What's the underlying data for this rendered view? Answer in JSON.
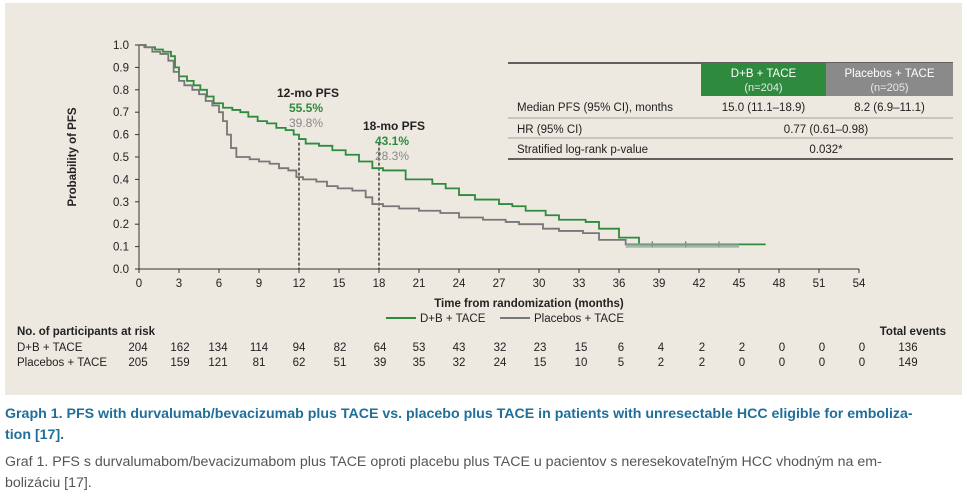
{
  "chart_data": {
    "type": "line",
    "xlabel": "Time from randomization (months)",
    "ylabel": "Probability of PFS",
    "xlim": [
      0,
      54
    ],
    "ylim": [
      0,
      1.0
    ],
    "x_ticks": [
      "0",
      "3",
      "6",
      "9",
      "12",
      "15",
      "18",
      "21",
      "24",
      "27",
      "30",
      "33",
      "36",
      "39",
      "42",
      "45",
      "48",
      "51",
      "54"
    ],
    "y_ticks": [
      "0.0",
      "0.1",
      "0.2",
      "0.3",
      "0.4",
      "0.5",
      "0.6",
      "0.7",
      "0.8",
      "0.9",
      "1.0"
    ],
    "grid": false,
    "legend_position": "bottom",
    "series": [
      {
        "name": "D+B + TACE",
        "color": "#2e8b3e",
        "steps": [
          [
            0,
            1.0
          ],
          [
            0.5,
            0.99
          ],
          [
            1.2,
            0.98
          ],
          [
            1.8,
            0.97
          ],
          [
            2.4,
            0.95
          ],
          [
            2.7,
            0.9
          ],
          [
            3.0,
            0.86
          ],
          [
            3.6,
            0.84
          ],
          [
            4.1,
            0.82
          ],
          [
            4.6,
            0.8
          ],
          [
            5.1,
            0.77
          ],
          [
            5.6,
            0.74
          ],
          [
            6.3,
            0.72
          ],
          [
            7.0,
            0.71
          ],
          [
            7.6,
            0.7
          ],
          [
            8.2,
            0.68
          ],
          [
            8.9,
            0.66
          ],
          [
            9.6,
            0.65
          ],
          [
            10.3,
            0.63
          ],
          [
            11.0,
            0.62
          ],
          [
            11.6,
            0.6
          ],
          [
            12.0,
            0.58
          ],
          [
            12.5,
            0.56
          ],
          [
            13.5,
            0.55
          ],
          [
            14.5,
            0.53
          ],
          [
            15.5,
            0.51
          ],
          [
            16.5,
            0.48
          ],
          [
            17.5,
            0.45
          ],
          [
            18.3,
            0.44
          ],
          [
            19.5,
            0.44
          ],
          [
            20.0,
            0.4
          ],
          [
            21.0,
            0.4
          ],
          [
            22.0,
            0.38
          ],
          [
            23.0,
            0.36
          ],
          [
            24.0,
            0.33
          ],
          [
            25.2,
            0.31
          ],
          [
            27.0,
            0.29
          ],
          [
            28.0,
            0.28
          ],
          [
            29.0,
            0.26
          ],
          [
            30.5,
            0.24
          ],
          [
            31.5,
            0.22
          ],
          [
            33.5,
            0.21
          ],
          [
            34.5,
            0.18
          ],
          [
            36.0,
            0.14
          ],
          [
            37.5,
            0.11
          ],
          [
            47.0,
            0.11
          ]
        ]
      },
      {
        "name": "Placebos + TACE",
        "color": "#777777",
        "steps": [
          [
            0,
            1.0
          ],
          [
            0.4,
            0.99
          ],
          [
            1.0,
            0.97
          ],
          [
            1.6,
            0.96
          ],
          [
            2.2,
            0.93
          ],
          [
            2.6,
            0.88
          ],
          [
            3.0,
            0.84
          ],
          [
            3.4,
            0.82
          ],
          [
            4.0,
            0.8
          ],
          [
            4.5,
            0.78
          ],
          [
            5.0,
            0.75
          ],
          [
            5.5,
            0.73
          ],
          [
            6.0,
            0.7
          ],
          [
            6.3,
            0.66
          ],
          [
            6.6,
            0.6
          ],
          [
            6.9,
            0.54
          ],
          [
            7.3,
            0.5
          ],
          [
            7.7,
            0.5
          ],
          [
            8.3,
            0.49
          ],
          [
            9.0,
            0.48
          ],
          [
            9.8,
            0.47
          ],
          [
            10.5,
            0.45
          ],
          [
            11.2,
            0.44
          ],
          [
            11.8,
            0.41
          ],
          [
            12.3,
            0.4
          ],
          [
            13.3,
            0.39
          ],
          [
            14.1,
            0.37
          ],
          [
            14.9,
            0.36
          ],
          [
            16.0,
            0.35
          ],
          [
            17.0,
            0.32
          ],
          [
            17.5,
            0.29
          ],
          [
            18.3,
            0.28
          ],
          [
            19.5,
            0.27
          ],
          [
            21.0,
            0.26
          ],
          [
            22.6,
            0.25
          ],
          [
            24.0,
            0.23
          ],
          [
            25.8,
            0.22
          ],
          [
            27.5,
            0.21
          ],
          [
            28.5,
            0.2
          ],
          [
            30.3,
            0.18
          ],
          [
            31.5,
            0.17
          ],
          [
            33.3,
            0.16
          ],
          [
            34.5,
            0.13
          ],
          [
            36.5,
            0.11
          ],
          [
            45.0,
            0.11
          ]
        ]
      }
    ],
    "markers": [
      {
        "x": 12,
        "title": "12-mo PFS",
        "values": [
          "55.5%",
          "39.8%"
        ]
      },
      {
        "x": 18,
        "title": "18-mo PFS",
        "values": [
          "43.1%",
          "28.3%"
        ]
      }
    ],
    "stats_table": {
      "headers": [
        "D+B + TACE\n(n=204)",
        "Placebos + TACE\n(n=205)"
      ],
      "header_colors": [
        "#2e8b3e",
        "#8a8a8a"
      ],
      "rows": [
        {
          "label": "Median PFS (95% CI), months",
          "values": [
            "15.0 (11.1–18.9)",
            "8.2 (6.9–11.1)"
          ]
        },
        {
          "label": "HR (95% CI)",
          "merged": "0.77 (0.61–0.98)"
        },
        {
          "label": "Stratified log-rank p-value",
          "merged": "0.032*"
        }
      ]
    },
    "risk_table": {
      "title": "No. of participants at risk",
      "total_label": "Total events",
      "rows": [
        {
          "name": "D+B + TACE",
          "values": [
            "204",
            "162",
            "134",
            "114",
            "94",
            "82",
            "64",
            "53",
            "43",
            "32",
            "23",
            "15",
            "6",
            "4",
            "2",
            "2",
            "0",
            "0",
            "0"
          ],
          "total": "136"
        },
        {
          "name": "Placebos + TACE",
          "values": [
            "205",
            "159",
            "121",
            "81",
            "62",
            "51",
            "39",
            "35",
            "32",
            "24",
            "15",
            "10",
            "5",
            "2",
            "2",
            "0",
            "0",
            "0",
            "0"
          ],
          "total": "149"
        }
      ]
    }
  },
  "caption": {
    "english": "Graph 1. PFS with durvalumab/bevacizumab plus TACE vs. placebo plus TACE in patients with unresectable HCC eligible for emboliza-\ntion [17].",
    "slovak": "Graf 1. PFS s durvalumabom/bevacizumabom plus TACE oproti placebu plus TACE u pacientov s neresekovateľným HCC vhodným na em-\nbolizáciu [17]."
  }
}
